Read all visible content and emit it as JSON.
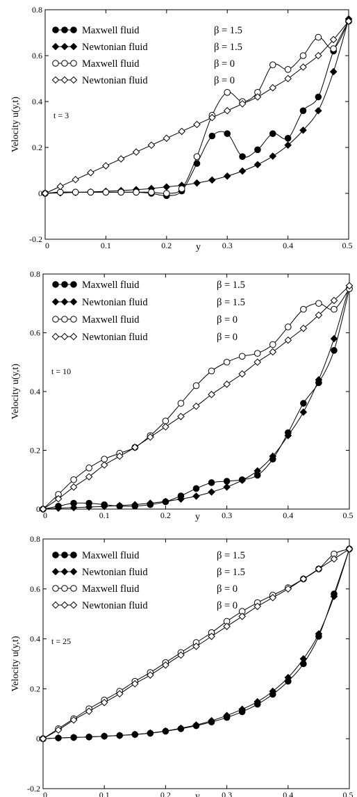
{
  "chart_data": [
    {
      "type": "line",
      "xlabel": "y",
      "ylabel": "Velocity u(y,t)",
      "annotation": "t = 3",
      "xlim": [
        0,
        0.5
      ],
      "ylim": [
        -0.2,
        0.8
      ],
      "xticks": [
        0,
        0.1,
        0.2,
        0.3,
        0.4,
        0.5
      ],
      "yticks": [
        -0.2,
        0,
        0.2,
        0.4,
        0.6,
        0.8
      ],
      "xtick_labels": [
        "0",
        "0.1",
        "0.2",
        "0.3",
        "0.4",
        "0.5"
      ],
      "ytick_labels": [
        "-0.2",
        "0",
        "0.2",
        "0.4",
        "0.6",
        "0.8"
      ],
      "legend_position": "top-left",
      "grid": false,
      "series": [
        {
          "name": "Maxwell fluid",
          "beta": "β = 1.5",
          "marker": "filled-circle",
          "x": [
            0,
            0.025,
            0.05,
            0.075,
            0.1,
            0.125,
            0.15,
            0.175,
            0.2,
            0.225,
            0.25,
            0.275,
            0.3,
            0.325,
            0.35,
            0.375,
            0.4,
            0.425,
            0.45,
            0.475,
            0.5
          ],
          "y": [
            0,
            0.005,
            0.005,
            0.005,
            0.005,
            0.005,
            0.005,
            0.0,
            -0.01,
            0.01,
            0.13,
            0.25,
            0.26,
            0.16,
            0.19,
            0.26,
            0.24,
            0.36,
            0.42,
            0.62,
            0.75
          ]
        },
        {
          "name": "Newtonian fluid",
          "beta": "β = 1.5",
          "marker": "filled-diamond",
          "x": [
            0,
            0.025,
            0.05,
            0.075,
            0.1,
            0.125,
            0.15,
            0.175,
            0.2,
            0.225,
            0.25,
            0.275,
            0.3,
            0.325,
            0.35,
            0.375,
            0.4,
            0.425,
            0.45,
            0.475,
            0.5
          ],
          "y": [
            0,
            0.002,
            0.004,
            0.006,
            0.009,
            0.012,
            0.016,
            0.021,
            0.028,
            0.035,
            0.045,
            0.058,
            0.075,
            0.097,
            0.125,
            0.162,
            0.21,
            0.275,
            0.36,
            0.53,
            0.76
          ]
        },
        {
          "name": "Maxwell fluid",
          "beta": "β = 0",
          "marker": "open-circle",
          "x": [
            0,
            0.025,
            0.05,
            0.075,
            0.1,
            0.125,
            0.15,
            0.175,
            0.2,
            0.225,
            0.25,
            0.275,
            0.3,
            0.325,
            0.35,
            0.375,
            0.4,
            0.425,
            0.45,
            0.475,
            0.5
          ],
          "y": [
            0,
            0.005,
            0.005,
            0.005,
            0.005,
            0.005,
            0.005,
            0.005,
            0.0,
            0.02,
            0.16,
            0.34,
            0.44,
            0.4,
            0.44,
            0.56,
            0.54,
            0.6,
            0.68,
            0.63,
            0.75
          ]
        },
        {
          "name": "Newtonian fluid",
          "beta": "β = 0",
          "marker": "open-diamond",
          "x": [
            0,
            0.025,
            0.05,
            0.075,
            0.1,
            0.125,
            0.15,
            0.175,
            0.2,
            0.225,
            0.25,
            0.275,
            0.3,
            0.325,
            0.35,
            0.375,
            0.4,
            0.425,
            0.45,
            0.475,
            0.5
          ],
          "y": [
            0,
            0.03,
            0.06,
            0.09,
            0.12,
            0.15,
            0.18,
            0.21,
            0.24,
            0.27,
            0.3,
            0.33,
            0.36,
            0.39,
            0.42,
            0.46,
            0.5,
            0.55,
            0.6,
            0.67,
            0.75
          ]
        }
      ]
    },
    {
      "type": "line",
      "xlabel": "y",
      "ylabel": "Velocity u(y,t)",
      "annotation": "t = 10",
      "xlim": [
        0,
        0.5
      ],
      "ylim": [
        0,
        0.8
      ],
      "xticks": [
        0,
        0.1,
        0.2,
        0.3,
        0.4,
        0.5
      ],
      "yticks": [
        0,
        0.2,
        0.4,
        0.6,
        0.8
      ],
      "xtick_labels": [
        "0",
        "0.1",
        "0.2",
        "0.3",
        "0.4",
        "0.5"
      ],
      "ytick_labels": [
        "0",
        "0.2",
        "0.4",
        "0.6",
        "0.8"
      ],
      "legend_position": "top-left",
      "grid": false,
      "series": [
        {
          "name": "Maxwell fluid",
          "beta": "β = 1.5",
          "marker": "filled-circle",
          "x": [
            0,
            0.025,
            0.05,
            0.075,
            0.1,
            0.125,
            0.15,
            0.175,
            0.2,
            0.225,
            0.25,
            0.275,
            0.3,
            0.325,
            0.35,
            0.375,
            0.4,
            0.425,
            0.45,
            0.475,
            0.5
          ],
          "y": [
            0,
            0.01,
            0.02,
            0.02,
            0.015,
            0.01,
            0.01,
            0.015,
            0.025,
            0.045,
            0.07,
            0.09,
            0.095,
            0.1,
            0.115,
            0.17,
            0.26,
            0.36,
            0.43,
            0.54,
            0.75
          ]
        },
        {
          "name": "Newtonian fluid",
          "beta": "β = 1.5",
          "marker": "filled-diamond",
          "x": [
            0,
            0.025,
            0.05,
            0.075,
            0.1,
            0.125,
            0.15,
            0.175,
            0.2,
            0.225,
            0.25,
            0.275,
            0.3,
            0.325,
            0.35,
            0.375,
            0.4,
            0.425,
            0.45,
            0.475,
            0.5
          ],
          "y": [
            0,
            0.003,
            0.005,
            0.007,
            0.009,
            0.012,
            0.015,
            0.02,
            0.026,
            0.034,
            0.044,
            0.058,
            0.075,
            0.098,
            0.13,
            0.18,
            0.25,
            0.33,
            0.44,
            0.58,
            0.76
          ]
        },
        {
          "name": "Maxwell fluid",
          "beta": "β = 0",
          "marker": "open-circle",
          "x": [
            0,
            0.025,
            0.05,
            0.075,
            0.1,
            0.125,
            0.15,
            0.175,
            0.2,
            0.225,
            0.25,
            0.275,
            0.3,
            0.325,
            0.35,
            0.375,
            0.4,
            0.425,
            0.45,
            0.475,
            0.5
          ],
          "y": [
            0,
            0.05,
            0.1,
            0.14,
            0.17,
            0.19,
            0.21,
            0.25,
            0.3,
            0.36,
            0.42,
            0.47,
            0.5,
            0.52,
            0.53,
            0.56,
            0.62,
            0.68,
            0.7,
            0.68,
            0.75
          ]
        },
        {
          "name": "Newtonian fluid",
          "beta": "β = 0",
          "marker": "open-diamond",
          "x": [
            0,
            0.025,
            0.05,
            0.075,
            0.1,
            0.125,
            0.15,
            0.175,
            0.2,
            0.225,
            0.25,
            0.275,
            0.3,
            0.325,
            0.35,
            0.375,
            0.4,
            0.425,
            0.45,
            0.475,
            0.5
          ],
          "y": [
            0,
            0.035,
            0.075,
            0.11,
            0.15,
            0.18,
            0.21,
            0.245,
            0.28,
            0.315,
            0.35,
            0.39,
            0.425,
            0.46,
            0.5,
            0.535,
            0.575,
            0.615,
            0.66,
            0.71,
            0.76
          ]
        }
      ]
    },
    {
      "type": "line",
      "xlabel": "y",
      "ylabel": "Velocity u(y,t)",
      "annotation": "t = 25",
      "xlim": [
        0,
        0.5
      ],
      "ylim": [
        -0.2,
        0.8
      ],
      "xticks": [
        0,
        0.1,
        0.2,
        0.3,
        0.4,
        0.5
      ],
      "yticks": [
        -0.2,
        0,
        0.2,
        0.4,
        0.6,
        0.8
      ],
      "xtick_labels": [
        "0",
        "0.1",
        "0.2",
        "0.3",
        "0.4",
        "0.5"
      ],
      "ytick_labels": [
        "-0.2",
        "0",
        "0.2",
        "0.4",
        "0.6",
        "0.8"
      ],
      "legend_position": "top-left",
      "grid": false,
      "series": [
        {
          "name": "Maxwell fluid",
          "beta": "β = 1.5",
          "marker": "filled-circle",
          "x": [
            0,
            0.025,
            0.05,
            0.075,
            0.1,
            0.125,
            0.15,
            0.175,
            0.2,
            0.225,
            0.25,
            0.275,
            0.3,
            0.325,
            0.35,
            0.375,
            0.4,
            0.425,
            0.45,
            0.475,
            0.5
          ],
          "y": [
            0,
            0.003,
            0.005,
            0.007,
            0.01,
            0.013,
            0.017,
            0.022,
            0.03,
            0.04,
            0.052,
            0.067,
            0.085,
            0.108,
            0.138,
            0.178,
            0.23,
            0.3,
            0.41,
            0.58,
            0.76
          ]
        },
        {
          "name": "Newtonian fluid",
          "beta": "β = 1.5",
          "marker": "filled-diamond",
          "x": [
            0,
            0.025,
            0.05,
            0.075,
            0.1,
            0.125,
            0.15,
            0.175,
            0.2,
            0.225,
            0.25,
            0.275,
            0.3,
            0.325,
            0.35,
            0.375,
            0.4,
            0.425,
            0.45,
            0.475,
            0.5
          ],
          "y": [
            0,
            0.003,
            0.005,
            0.007,
            0.01,
            0.013,
            0.017,
            0.023,
            0.031,
            0.042,
            0.055,
            0.072,
            0.093,
            0.118,
            0.148,
            0.19,
            0.245,
            0.32,
            0.42,
            0.57,
            0.76
          ]
        },
        {
          "name": "Maxwell fluid",
          "beta": "β = 0",
          "marker": "open-circle",
          "x": [
            0,
            0.025,
            0.05,
            0.075,
            0.1,
            0.125,
            0.15,
            0.175,
            0.2,
            0.225,
            0.25,
            0.275,
            0.3,
            0.325,
            0.35,
            0.375,
            0.4,
            0.425,
            0.45,
            0.475,
            0.5
          ],
          "y": [
            0,
            0.04,
            0.08,
            0.12,
            0.155,
            0.19,
            0.23,
            0.265,
            0.305,
            0.345,
            0.385,
            0.425,
            0.47,
            0.51,
            0.545,
            0.575,
            0.605,
            0.64,
            0.68,
            0.74,
            0.76
          ]
        },
        {
          "name": "Newtonian fluid",
          "beta": "β = 0",
          "marker": "open-diamond",
          "x": [
            0,
            0.025,
            0.05,
            0.075,
            0.1,
            0.125,
            0.15,
            0.175,
            0.2,
            0.225,
            0.25,
            0.275,
            0.3,
            0.325,
            0.35,
            0.375,
            0.4,
            0.425,
            0.45,
            0.475,
            0.5
          ],
          "y": [
            0,
            0.035,
            0.075,
            0.11,
            0.145,
            0.18,
            0.22,
            0.255,
            0.295,
            0.335,
            0.37,
            0.41,
            0.45,
            0.49,
            0.53,
            0.565,
            0.6,
            0.64,
            0.68,
            0.72,
            0.76
          ]
        }
      ]
    }
  ]
}
